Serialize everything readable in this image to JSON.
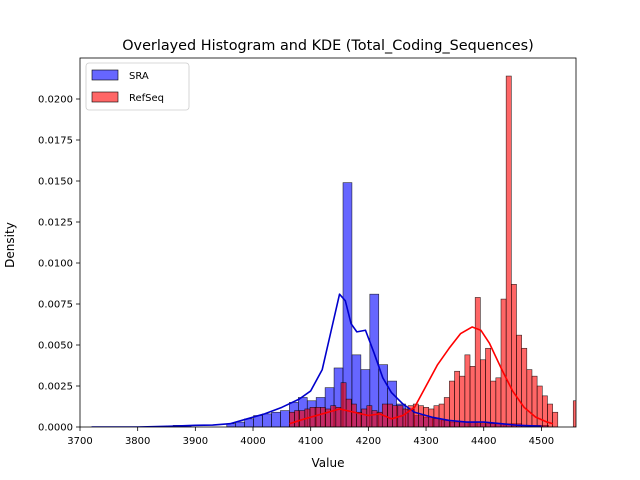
{
  "chart_data": {
    "type": "histogram+kde",
    "title": "Overlayed Histogram and KDE (Total_Coding_Sequences)",
    "xlabel": "Value",
    "ylabel": "Density",
    "xlim": [
      3700,
      4560
    ],
    "ylim": [
      0,
      0.0225
    ],
    "x_ticks": [
      3700,
      3800,
      3900,
      4000,
      4100,
      4200,
      4300,
      4400,
      4500
    ],
    "x_tick_labels": [
      "3700",
      "3800",
      "3900",
      "4000",
      "4100",
      "4200",
      "4300",
      "4400",
      "4500"
    ],
    "y_ticks": [
      0,
      0.0025,
      0.005,
      0.0075,
      0.01,
      0.0125,
      0.015,
      0.0175,
      0.02
    ],
    "y_tick_labels": [
      "0.0000",
      "0.0025",
      "0.0050",
      "0.0075",
      "0.0100",
      "0.0125",
      "0.0150",
      "0.0175",
      "0.0200"
    ],
    "grid": false,
    "legend": {
      "position": "top-left"
    },
    "series": [
      {
        "name": "SRA",
        "color": "#0000ff",
        "kde_color": "#0000cc",
        "bin_start": 3722,
        "bin_width": 15.5,
        "densities": [
          0,
          0,
          0,
          0,
          0,
          0,
          0,
          0,
          0,
          0.0001,
          0.0001,
          0,
          0,
          0,
          0,
          0.0002,
          0.0003,
          0.0005,
          0.0007,
          0.0008,
          0.0009,
          0.001,
          0.0015,
          0.0018,
          0.0016,
          0.0018,
          0.0024,
          0.0036,
          0.0149,
          0.0044,
          0.0035,
          0.0081,
          0.0038,
          0.0028,
          0.0014,
          0.0011,
          0.0007,
          0.0006,
          0.0005,
          0.0004,
          0.0003,
          0.0003,
          0.0003,
          0.0002,
          0.0002,
          0.0002,
          0.0002,
          0.0002,
          0.0001,
          0.0001,
          0.0001
        ],
        "kde": [
          [
            3720,
            0
          ],
          [
            3800,
            0
          ],
          [
            3860,
            5e-05
          ],
          [
            3900,
            0.0001
          ],
          [
            3930,
            0.00012
          ],
          [
            3960,
            0.0002
          ],
          [
            3990,
            0.0005
          ],
          [
            4020,
            0.0008
          ],
          [
            4050,
            0.0012
          ],
          [
            4080,
            0.0017
          ],
          [
            4100,
            0.0022
          ],
          [
            4120,
            0.0035
          ],
          [
            4135,
            0.0058
          ],
          [
            4150,
            0.0081
          ],
          [
            4160,
            0.0077
          ],
          [
            4170,
            0.0063
          ],
          [
            4180,
            0.0058
          ],
          [
            4195,
            0.0059
          ],
          [
            4210,
            0.0045
          ],
          [
            4225,
            0.003
          ],
          [
            4240,
            0.0021
          ],
          [
            4260,
            0.0014
          ],
          [
            4280,
            0.0009
          ],
          [
            4310,
            0.0006
          ],
          [
            4340,
            0.0004
          ],
          [
            4370,
            0.0003
          ],
          [
            4400,
            0.0003
          ],
          [
            4430,
            0.0002
          ],
          [
            4460,
            0.0001
          ],
          [
            4500,
            5e-05
          ]
        ]
      },
      {
        "name": "RefSeq",
        "color": "#ff0000",
        "kde_color": "#ff0000",
        "bin_start": 4063,
        "bin_width": 8.95,
        "densities": [
          0.0009,
          0.001,
          0.001,
          0.0011,
          0.0012,
          0.0012,
          0.0012,
          0.0011,
          0.0013,
          0.0012,
          0.0027,
          0.0017,
          0.0014,
          0.0009,
          0.0011,
          0.0013,
          0.001,
          0.0009,
          0.0014,
          0.0014,
          0.0013,
          0.0013,
          0.0011,
          0.0013,
          0.0014,
          0.0013,
          0.0012,
          0.0011,
          0.0013,
          0.0014,
          0.0018,
          0.0028,
          0.0034,
          0.0031,
          0.0044,
          0.0037,
          0.0079,
          0.0041,
          0.0048,
          0.0028,
          0.003,
          0.0078,
          0.0214,
          0.0087,
          0.0056,
          0.0048,
          0.0035,
          0.0031,
          0.0025,
          0.0019,
          0.0014,
          0.0009,
          0.0,
          0.0,
          0.0,
          0.0016
        ],
        "kde": [
          [
            4063,
            0.0002
          ],
          [
            4090,
            0.0005
          ],
          [
            4120,
            0.0008
          ],
          [
            4150,
            0.0011
          ],
          [
            4175,
            0.0009
          ],
          [
            4200,
            0.0007
          ],
          [
            4220,
            0.0008
          ],
          [
            4240,
            0.0005
          ],
          [
            4260,
            0.0007
          ],
          [
            4280,
            0.0012
          ],
          [
            4300,
            0.0025
          ],
          [
            4320,
            0.0038
          ],
          [
            4340,
            0.0048
          ],
          [
            4360,
            0.0057
          ],
          [
            4380,
            0.0061
          ],
          [
            4395,
            0.0059
          ],
          [
            4410,
            0.0051
          ],
          [
            4430,
            0.0036
          ],
          [
            4450,
            0.0022
          ],
          [
            4470,
            0.0012
          ],
          [
            4490,
            0.0006
          ],
          [
            4510,
            0.0003
          ],
          [
            4520,
            0.0002
          ]
        ]
      }
    ]
  }
}
